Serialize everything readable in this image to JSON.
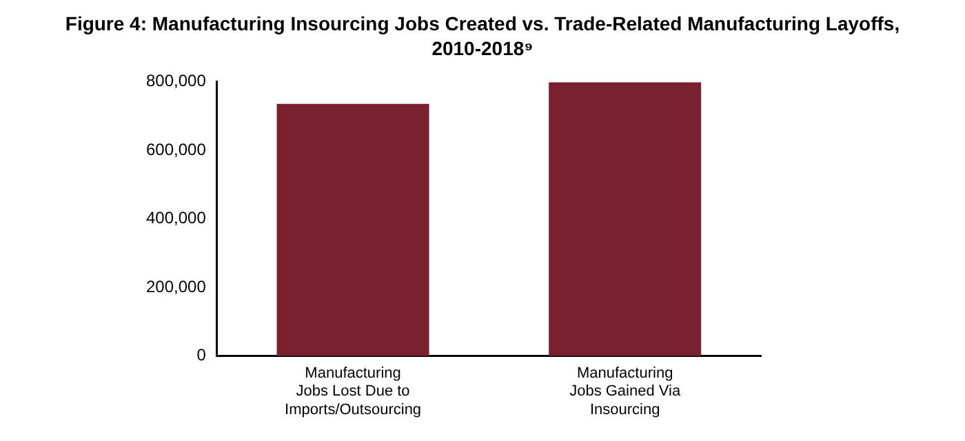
{
  "chart_data": {
    "type": "bar",
    "title": "Figure 4: Manufacturing Insourcing Jobs Created vs. Trade-Related Manufacturing Layoffs, 2010-2018⁹",
    "categories": [
      "Manufacturing Jobs Lost Due to Imports/Outsourcing",
      "Manufacturing Jobs Gained Via Insourcing"
    ],
    "values": [
      735000,
      798000
    ],
    "color": "#7a1f2e",
    "ylim": [
      0,
      800000
    ],
    "yticks": [
      0,
      {
        "value": 200000,
        "label": "200,000"
      },
      {
        "value": 400000,
        "label": "400,000"
      },
      {
        "value": 600000,
        "label": "600,000"
      },
      {
        "value": 800000,
        "label": "800,000"
      }
    ],
    "grid": false,
    "legend": false
  }
}
